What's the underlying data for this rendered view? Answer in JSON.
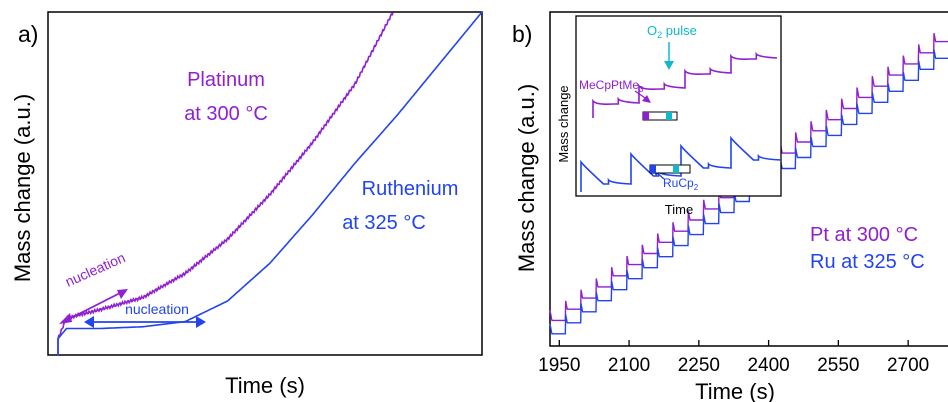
{
  "colors": {
    "platinum": "#8f1fd0",
    "ruthenium": "#2244ee",
    "o2": "#10b8c8",
    "axis": "#000000"
  },
  "panel_a": {
    "label": "a)",
    "xlabel": "Time (s)",
    "ylabel": "Mass change (a.u.)",
    "pt_name": "Platinum",
    "pt_temp": "at 300 °C",
    "ru_name": "Ruthenium",
    "ru_temp": "at 325 °C",
    "pt_nucleation": "nucleation",
    "ru_nucleation": "nucleation"
  },
  "panel_b": {
    "label": "b)",
    "xlabel": "Time (s)",
    "ylabel": "Mass change (a.u.)",
    "legend_pt": "Pt at 300 °C",
    "legend_ru": "Ru at 325 °C",
    "inset": {
      "ylabel": "Mass change",
      "xlabel": "Time",
      "o2_label": "O",
      "o2_sub": "2",
      "o2_rest": " pulse",
      "pt_precursor": "MeCpPtMe",
      "pt_precursor_sub": "3",
      "ru_precursor": "RuCp",
      "ru_precursor_sub": "2"
    }
  },
  "chart_data": [
    {
      "type": "line",
      "panel": "a",
      "xlabel": "Time (s)",
      "ylabel": "Mass change (a.u.)",
      "series": [
        {
          "name": "Platinum at 300 °C",
          "points": [
            [
              0.0,
              0.05
            ],
            [
              0.02,
              0.11
            ],
            [
              0.1,
              0.135
            ],
            [
              0.2,
              0.17
            ],
            [
              0.3,
              0.24
            ],
            [
              0.4,
              0.34
            ],
            [
              0.5,
              0.47
            ],
            [
              0.6,
              0.62
            ],
            [
              0.7,
              0.79
            ],
            [
              0.79,
              1.0
            ]
          ]
        },
        {
          "name": "Ruthenium at 325 °C",
          "points": [
            [
              0.0,
              0.05
            ],
            [
              0.02,
              0.08
            ],
            [
              0.1,
              0.08
            ],
            [
              0.2,
              0.085
            ],
            [
              0.3,
              0.1
            ],
            [
              0.4,
              0.16
            ],
            [
              0.5,
              0.27
            ],
            [
              0.6,
              0.41
            ],
            [
              0.7,
              0.56
            ],
            [
              0.8,
              0.7
            ],
            [
              0.9,
              0.85
            ],
            [
              1.0,
              1.0
            ]
          ]
        }
      ]
    },
    {
      "type": "line",
      "panel": "b",
      "xlabel": "Time (s)",
      "ylabel": "Mass change (a.u.)",
      "xlim": [
        1930,
        2790
      ],
      "xticks": [
        1950,
        2100,
        2250,
        2400,
        2550,
        2700
      ],
      "series": [
        {
          "name": "Pt at 300 °C",
          "x_start": 1930,
          "x_end": 2790,
          "y_start": 0.06,
          "y_end": 0.93,
          "pulse_period_s": 33
        },
        {
          "name": "Ru at 325 °C",
          "x_start": 1930,
          "x_end": 2790,
          "y_start": 0.02,
          "y_end": 0.88,
          "pulse_period_s": 33
        }
      ]
    }
  ]
}
